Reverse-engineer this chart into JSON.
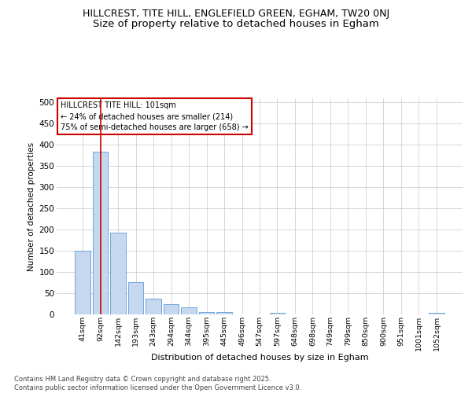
{
  "title1": "HILLCREST, TITE HILL, ENGLEFIELD GREEN, EGHAM, TW20 0NJ",
  "title2": "Size of property relative to detached houses in Egham",
  "xlabel": "Distribution of detached houses by size in Egham",
  "ylabel": "Number of detached properties",
  "categories": [
    "41sqm",
    "92sqm",
    "142sqm",
    "193sqm",
    "243sqm",
    "294sqm",
    "344sqm",
    "395sqm",
    "445sqm",
    "496sqm",
    "547sqm",
    "597sqm",
    "648sqm",
    "698sqm",
    "749sqm",
    "799sqm",
    "850sqm",
    "900sqm",
    "951sqm",
    "1001sqm",
    "1052sqm"
  ],
  "values": [
    150,
    383,
    192,
    76,
    38,
    25,
    16,
    6,
    5,
    0,
    0,
    4,
    0,
    0,
    0,
    0,
    0,
    0,
    0,
    0,
    4
  ],
  "bar_color": "#c5d8f0",
  "bar_edge_color": "#5b9bd5",
  "grid_color": "#d0d0d0",
  "annotation_text": "HILLCREST TITE HILL: 101sqm\n← 24% of detached houses are smaller (214)\n75% of semi-detached houses are larger (658) →",
  "annotation_box_edge": "#cc0000",
  "vline_x": 1.0,
  "vline_color": "#cc0000",
  "ylim": [
    0,
    510
  ],
  "yticks": [
    0,
    50,
    100,
    150,
    200,
    250,
    300,
    350,
    400,
    450,
    500
  ],
  "footer_text": "Contains HM Land Registry data © Crown copyright and database right 2025.\nContains public sector information licensed under the Open Government Licence v3.0.",
  "title1_fontsize": 9,
  "title2_fontsize": 9.5,
  "background_color": "#ffffff"
}
